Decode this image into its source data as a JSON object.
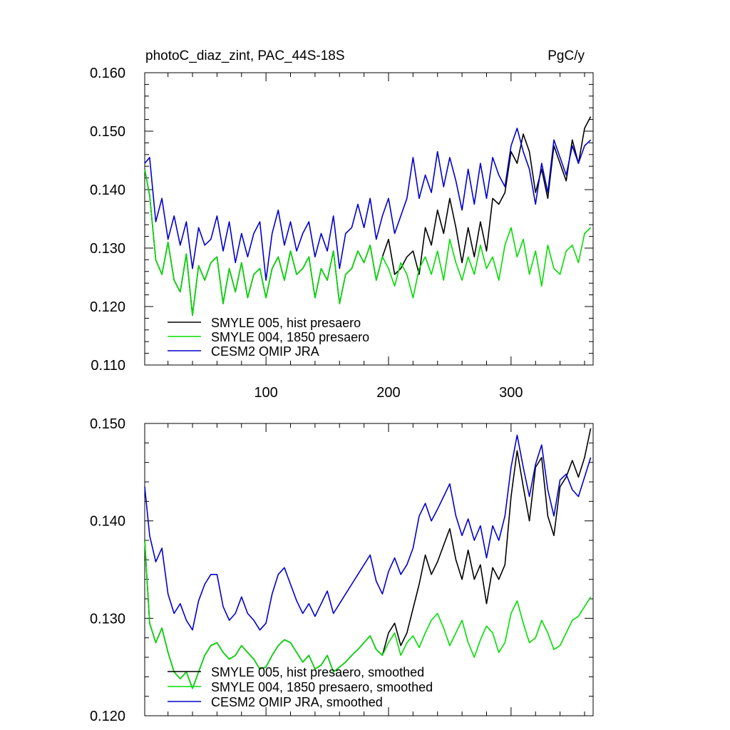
{
  "chart_data": [
    {
      "type": "line",
      "title": "photoC_diaz_zint, PAC_44S-18S",
      "units": "PgC/y",
      "xlim": [
        1,
        367
      ],
      "ylim": [
        0.11,
        0.16
      ],
      "x_ticks": [
        100,
        200,
        300
      ],
      "x_tick_labels": [
        "100",
        "200",
        "300"
      ],
      "y_ticks": [
        0.11,
        0.12,
        0.13,
        0.14,
        0.15,
        0.16
      ],
      "y_tick_labels": [
        "0.110",
        "0.120",
        "0.130",
        "0.140",
        "0.150",
        "0.160"
      ],
      "legend_position": "bottom-left",
      "series": [
        {
          "name": "SMYLE 005, hist presaero",
          "color": "#000000",
          "x": [
            1,
            5,
            10,
            15,
            20,
            25,
            30,
            35,
            40,
            45,
            50,
            55,
            60,
            65,
            70,
            75,
            80,
            85,
            90,
            95,
            100,
            105,
            110,
            115,
            120,
            125,
            130,
            135,
            140,
            145,
            150,
            155,
            160,
            165,
            170,
            175,
            180,
            185,
            190,
            195,
            200,
            205,
            210,
            215,
            220,
            225,
            230,
            235,
            240,
            245,
            250,
            255,
            260,
            265,
            270,
            275,
            280,
            285,
            290,
            295,
            300,
            305,
            310,
            315,
            320,
            325,
            330,
            335,
            340,
            345,
            350,
            355,
            360,
            365
          ],
          "values": [
            0.1435,
            0.139,
            0.128,
            0.1255,
            0.131,
            0.1245,
            0.1225,
            0.129,
            0.1185,
            0.127,
            0.1245,
            0.1275,
            0.1285,
            0.1205,
            0.1265,
            0.1225,
            0.1275,
            0.1215,
            0.1255,
            0.1265,
            0.1215,
            0.1265,
            0.1285,
            0.1245,
            0.1295,
            0.1255,
            0.1265,
            0.1285,
            0.1215,
            0.1265,
            0.1245,
            0.1295,
            0.1205,
            0.1255,
            0.1265,
            0.1295,
            0.1275,
            0.1305,
            0.1245,
            0.1285,
            0.1315,
            0.1255,
            0.1265,
            0.1285,
            0.1295,
            0.1255,
            0.1335,
            0.1305,
            0.1365,
            0.1325,
            0.1385,
            0.1335,
            0.1275,
            0.1335,
            0.1285,
            0.1345,
            0.1295,
            0.1385,
            0.1375,
            0.1395,
            0.1465,
            0.1445,
            0.1495,
            0.1465,
            0.1395,
            0.1435,
            0.1385,
            0.1475,
            0.1445,
            0.1415,
            0.1485,
            0.1445,
            0.1505,
            0.1525
          ]
        },
        {
          "name": "SMYLE 004, 1850 presaero",
          "color": "#00dd00",
          "x": [
            1,
            5,
            10,
            15,
            20,
            25,
            30,
            35,
            40,
            45,
            50,
            55,
            60,
            65,
            70,
            75,
            80,
            85,
            90,
            95,
            100,
            105,
            110,
            115,
            120,
            125,
            130,
            135,
            140,
            145,
            150,
            155,
            160,
            165,
            170,
            175,
            180,
            185,
            190,
            195,
            200,
            205,
            210,
            215,
            220,
            225,
            230,
            235,
            240,
            245,
            250,
            255,
            260,
            265,
            270,
            275,
            280,
            285,
            290,
            295,
            300,
            305,
            310,
            315,
            320,
            325,
            330,
            335,
            340,
            345,
            350,
            355,
            360,
            365
          ],
          "values": [
            0.1435,
            0.139,
            0.128,
            0.1255,
            0.131,
            0.1245,
            0.1225,
            0.129,
            0.1185,
            0.127,
            0.1245,
            0.1275,
            0.1285,
            0.1205,
            0.1265,
            0.1225,
            0.1275,
            0.1215,
            0.1255,
            0.1265,
            0.1215,
            0.1265,
            0.1285,
            0.1245,
            0.1295,
            0.1255,
            0.1265,
            0.1285,
            0.1215,
            0.1265,
            0.1245,
            0.1295,
            0.1205,
            0.1255,
            0.1265,
            0.1295,
            0.1275,
            0.1305,
            0.1245,
            0.1285,
            0.1265,
            0.1235,
            0.1275,
            0.1255,
            0.1215,
            0.1265,
            0.1285,
            0.1255,
            0.1295,
            0.1245,
            0.1315,
            0.1275,
            0.1245,
            0.1285,
            0.1255,
            0.1305,
            0.1265,
            0.1285,
            0.1245,
            0.1305,
            0.1335,
            0.1285,
            0.1315,
            0.1255,
            0.1295,
            0.1235,
            0.1305,
            0.1265,
            0.1255,
            0.1295,
            0.1305,
            0.1275,
            0.1325,
            0.1335
          ]
        },
        {
          "name": "CESM2 OMIP JRA",
          "color": "#0000cc",
          "x": [
            1,
            5,
            10,
            15,
            20,
            25,
            30,
            35,
            40,
            45,
            50,
            55,
            60,
            65,
            70,
            75,
            80,
            85,
            90,
            95,
            100,
            105,
            110,
            115,
            120,
            125,
            130,
            135,
            140,
            145,
            150,
            155,
            160,
            165,
            170,
            175,
            180,
            185,
            190,
            195,
            200,
            205,
            210,
            215,
            220,
            225,
            230,
            235,
            240,
            245,
            250,
            255,
            260,
            265,
            270,
            275,
            280,
            285,
            290,
            295,
            300,
            305,
            310,
            315,
            320,
            325,
            330,
            335,
            340,
            345,
            350,
            355,
            360,
            365
          ],
          "values": [
            0.1445,
            0.1455,
            0.1345,
            0.1385,
            0.1315,
            0.1355,
            0.1305,
            0.1345,
            0.1265,
            0.1335,
            0.1305,
            0.1315,
            0.1355,
            0.1295,
            0.1345,
            0.1275,
            0.1325,
            0.1285,
            0.1325,
            0.1345,
            0.1245,
            0.1325,
            0.1365,
            0.1305,
            0.1345,
            0.1295,
            0.1325,
            0.1345,
            0.1285,
            0.1325,
            0.1295,
            0.1355,
            0.1265,
            0.1325,
            0.1335,
            0.1375,
            0.1335,
            0.1385,
            0.1315,
            0.1355,
            0.1385,
            0.1325,
            0.1355,
            0.1385,
            0.1455,
            0.1385,
            0.1425,
            0.1395,
            0.1465,
            0.1405,
            0.1455,
            0.1415,
            0.1365,
            0.1435,
            0.1375,
            0.1445,
            0.1385,
            0.1455,
            0.1425,
            0.1405,
            0.1475,
            0.1505,
            0.1465,
            0.1435,
            0.1375,
            0.1445,
            0.1395,
            0.1485,
            0.1455,
            0.1425,
            0.1475,
            0.1445,
            0.1475,
            0.1485
          ]
        }
      ]
    },
    {
      "type": "line",
      "xlim": [
        1,
        367
      ],
      "ylim": [
        0.12,
        0.15
      ],
      "x_ticks": [
        100,
        200,
        300
      ],
      "y_ticks": [
        0.12,
        0.13,
        0.14,
        0.15
      ],
      "y_tick_labels": [
        "0.120",
        "0.130",
        "0.140",
        "0.150"
      ],
      "legend_position": "bottom-left",
      "series": [
        {
          "name": "SMYLE 005, hist presaero, smoothed",
          "color": "#000000",
          "x": [
            1,
            5,
            10,
            15,
            20,
            25,
            30,
            35,
            40,
            45,
            50,
            55,
            60,
            65,
            70,
            75,
            80,
            85,
            90,
            95,
            100,
            105,
            110,
            115,
            120,
            125,
            130,
            135,
            140,
            145,
            150,
            155,
            160,
            165,
            170,
            175,
            180,
            185,
            190,
            195,
            200,
            205,
            210,
            215,
            220,
            225,
            230,
            235,
            240,
            245,
            250,
            255,
            260,
            265,
            270,
            275,
            280,
            285,
            290,
            295,
            300,
            305,
            310,
            315,
            320,
            325,
            330,
            335,
            340,
            345,
            350,
            355,
            360,
            365
          ],
          "values": [
            0.138,
            0.1295,
            0.1275,
            0.129,
            0.1265,
            0.1245,
            0.1238,
            0.1245,
            0.1228,
            0.1245,
            0.1262,
            0.1272,
            0.1275,
            0.1265,
            0.1258,
            0.1262,
            0.1272,
            0.1265,
            0.1258,
            0.1248,
            0.125,
            0.1262,
            0.1272,
            0.1278,
            0.1275,
            0.1265,
            0.1255,
            0.1262,
            0.1248,
            0.1252,
            0.1262,
            0.1245,
            0.125,
            0.1255,
            0.1262,
            0.1268,
            0.1275,
            0.1282,
            0.1268,
            0.1262,
            0.1285,
            0.1295,
            0.1272,
            0.1285,
            0.131,
            0.1335,
            0.1365,
            0.1345,
            0.1358,
            0.1375,
            0.1392,
            0.136,
            0.134,
            0.137,
            0.134,
            0.1355,
            0.1315,
            0.1352,
            0.134,
            0.1355,
            0.1425,
            0.1472,
            0.1435,
            0.14,
            0.1455,
            0.1465,
            0.1405,
            0.1385,
            0.1435,
            0.1445,
            0.1462,
            0.1445,
            0.1465,
            0.1495
          ]
        },
        {
          "name": "SMYLE 004, 1850 presaero, smoothed",
          "color": "#00dd00",
          "x": [
            1,
            5,
            10,
            15,
            20,
            25,
            30,
            35,
            40,
            45,
            50,
            55,
            60,
            65,
            70,
            75,
            80,
            85,
            90,
            95,
            100,
            105,
            110,
            115,
            120,
            125,
            130,
            135,
            140,
            145,
            150,
            155,
            160,
            165,
            170,
            175,
            180,
            185,
            190,
            195,
            200,
            205,
            210,
            215,
            220,
            225,
            230,
            235,
            240,
            245,
            250,
            255,
            260,
            265,
            270,
            275,
            280,
            285,
            290,
            295,
            300,
            305,
            310,
            315,
            320,
            325,
            330,
            335,
            340,
            345,
            350,
            355,
            360,
            365
          ],
          "values": [
            0.138,
            0.1295,
            0.1275,
            0.129,
            0.1265,
            0.1245,
            0.1238,
            0.1245,
            0.1228,
            0.1245,
            0.1262,
            0.1272,
            0.1275,
            0.1265,
            0.1258,
            0.1262,
            0.1272,
            0.1265,
            0.1258,
            0.1248,
            0.125,
            0.1262,
            0.1272,
            0.1278,
            0.1275,
            0.1265,
            0.1255,
            0.1262,
            0.1248,
            0.1252,
            0.1262,
            0.1245,
            0.125,
            0.1255,
            0.1262,
            0.1268,
            0.1275,
            0.1282,
            0.1268,
            0.1262,
            0.1275,
            0.1285,
            0.1262,
            0.1275,
            0.1282,
            0.127,
            0.1285,
            0.1298,
            0.1305,
            0.129,
            0.1272,
            0.1285,
            0.1298,
            0.1275,
            0.126,
            0.1278,
            0.1292,
            0.1285,
            0.1265,
            0.1275,
            0.1305,
            0.1318,
            0.1295,
            0.1275,
            0.128,
            0.1298,
            0.1285,
            0.1268,
            0.1272,
            0.1285,
            0.1298,
            0.1302,
            0.1312,
            0.1322
          ]
        },
        {
          "name": "CESM2 OMIP JRA, smoothed",
          "color": "#0000cc",
          "x": [
            1,
            5,
            10,
            15,
            20,
            25,
            30,
            35,
            40,
            45,
            50,
            55,
            60,
            65,
            70,
            75,
            80,
            85,
            90,
            95,
            100,
            105,
            110,
            115,
            120,
            125,
            130,
            135,
            140,
            145,
            150,
            155,
            160,
            165,
            170,
            175,
            180,
            185,
            190,
            195,
            200,
            205,
            210,
            215,
            220,
            225,
            230,
            235,
            240,
            245,
            250,
            255,
            260,
            265,
            270,
            275,
            280,
            285,
            290,
            295,
            300,
            305,
            310,
            315,
            320,
            325,
            330,
            335,
            340,
            345,
            350,
            355,
            360,
            365
          ],
          "values": [
            0.1435,
            0.1385,
            0.1358,
            0.1372,
            0.1325,
            0.1305,
            0.1315,
            0.1298,
            0.1288,
            0.1318,
            0.1335,
            0.1345,
            0.1345,
            0.1312,
            0.1298,
            0.1305,
            0.1322,
            0.1305,
            0.1298,
            0.1288,
            0.1295,
            0.1325,
            0.1345,
            0.1352,
            0.1335,
            0.1318,
            0.1305,
            0.1315,
            0.1302,
            0.1315,
            0.1328,
            0.1305,
            0.1315,
            0.1325,
            0.1335,
            0.1345,
            0.1355,
            0.1365,
            0.1338,
            0.1325,
            0.1348,
            0.1362,
            0.1345,
            0.1355,
            0.1372,
            0.1405,
            0.1418,
            0.14,
            0.1412,
            0.1425,
            0.1438,
            0.1405,
            0.1385,
            0.1402,
            0.138,
            0.1395,
            0.1362,
            0.1395,
            0.138,
            0.1405,
            0.1455,
            0.1488,
            0.1455,
            0.1425,
            0.1458,
            0.1478,
            0.1432,
            0.1405,
            0.1442,
            0.1448,
            0.1432,
            0.1425,
            0.1445,
            0.1465
          ]
        }
      ]
    }
  ]
}
